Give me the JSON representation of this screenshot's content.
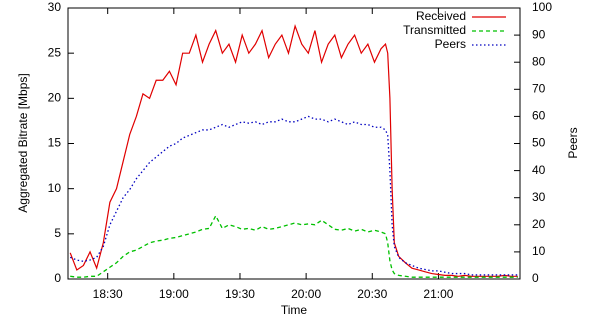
{
  "chart_data": {
    "type": "line",
    "xlabel": "Time",
    "ylabel": "Aggregated Bitrate [Mbps]",
    "y2label": "Peers",
    "x": [
      1093,
      1096,
      1099,
      1102,
      1105,
      1108,
      1111,
      1114,
      1117,
      1120,
      1123,
      1126,
      1129,
      1132,
      1135,
      1138,
      1141,
      1144,
      1147,
      1150,
      1153,
      1156,
      1159,
      1162,
      1165,
      1168,
      1171,
      1174,
      1177,
      1180,
      1183,
      1186,
      1189,
      1192,
      1195,
      1198,
      1201,
      1204,
      1207,
      1210,
      1213,
      1216,
      1219,
      1222,
      1225,
      1228,
      1231,
      1234,
      1236,
      1237,
      1238,
      1239,
      1240,
      1242,
      1245,
      1248,
      1251,
      1254,
      1257,
      1260,
      1263,
      1266,
      1269,
      1272,
      1275,
      1278,
      1281,
      1284,
      1287,
      1290,
      1293,
      1296
    ],
    "series": [
      {
        "name": "Received",
        "color": "#e00000",
        "values": [
          2.9,
          1.0,
          1.5,
          3,
          1.2,
          4,
          8.5,
          10,
          13,
          16,
          18,
          20.5,
          20,
          22,
          22,
          23,
          21.5,
          25,
          25,
          27,
          24,
          26,
          27.5,
          25,
          26,
          24,
          27,
          25,
          26,
          27.5,
          24.5,
          26,
          27,
          25,
          28,
          26,
          25,
          27.5,
          24,
          26,
          27,
          24.5,
          26,
          27,
          25,
          26,
          24,
          25.5,
          26,
          25,
          20,
          10,
          4,
          2.5,
          1.8,
          1.2,
          1,
          0.8,
          0.6,
          0.5,
          0.4,
          0.4,
          0.3,
          0.4,
          0.3,
          0.3,
          0.3,
          0.3,
          0.3,
          0.4,
          0.3,
          0.3
        ]
      },
      {
        "name": "Transmitted",
        "color": "#00c000",
        "values": [
          0.3,
          0.2,
          0.2,
          0.3,
          0.3,
          0.8,
          1.3,
          1.8,
          2.5,
          3,
          3.2,
          3.6,
          4,
          4.2,
          4.3,
          4.5,
          4.6,
          4.8,
          5,
          5.2,
          5.5,
          5.6,
          7,
          5.6,
          6,
          5.8,
          5.5,
          5.6,
          5.4,
          5.8,
          5.5,
          5.6,
          5.8,
          6,
          6.2,
          6,
          6.1,
          6,
          6.5,
          6,
          5.5,
          5.4,
          5.6,
          5.3,
          5.5,
          5.2,
          5.4,
          5.2,
          5,
          4,
          2,
          1,
          0.6,
          0.4,
          0.3,
          0.2,
          0.2,
          0.2,
          0.2,
          0.2,
          0.2,
          0.2,
          0.2,
          0.2,
          0.2,
          0.2,
          0.2,
          0.2,
          0.2,
          0.2,
          0.2,
          0.2
        ]
      },
      {
        "name": "Peers",
        "color": "#0000c0",
        "axis": "y2",
        "values": [
          8,
          7,
          6.5,
          7,
          8,
          12,
          20,
          25,
          30,
          33,
          37,
          40,
          43,
          45,
          47,
          49,
          50,
          52,
          53,
          54,
          55,
          55,
          56,
          57,
          56,
          57,
          58,
          57.5,
          58,
          57,
          58,
          58,
          59,
          58,
          58,
          59,
          60,
          59,
          59,
          58,
          59,
          58,
          57,
          58,
          57,
          57,
          56,
          56,
          55,
          53,
          40,
          20,
          12,
          8,
          6,
          5,
          4,
          3.5,
          3,
          3,
          2.5,
          2,
          2,
          2,
          1.5,
          1.5,
          1.5,
          1.5,
          1.5,
          1.5,
          1.5,
          1.5
        ]
      }
    ],
    "xlim": [
      1092,
      1297
    ],
    "xticks": [
      {
        "value": 1110,
        "label": "18:30"
      },
      {
        "value": 1140,
        "label": "19:00"
      },
      {
        "value": 1170,
        "label": "19:30"
      },
      {
        "value": 1200,
        "label": "20:00"
      },
      {
        "value": 1230,
        "label": "20:30"
      },
      {
        "value": 1260,
        "label": "21:00"
      }
    ],
    "ylim": [
      0,
      30
    ],
    "yticks": [
      0,
      5,
      10,
      15,
      20,
      25,
      30
    ],
    "y2lim": [
      0,
      100
    ],
    "y2ticks": [
      0,
      10,
      20,
      30,
      40,
      50,
      60,
      70,
      80,
      90,
      100
    ],
    "legend": "top-right",
    "grid": false
  }
}
